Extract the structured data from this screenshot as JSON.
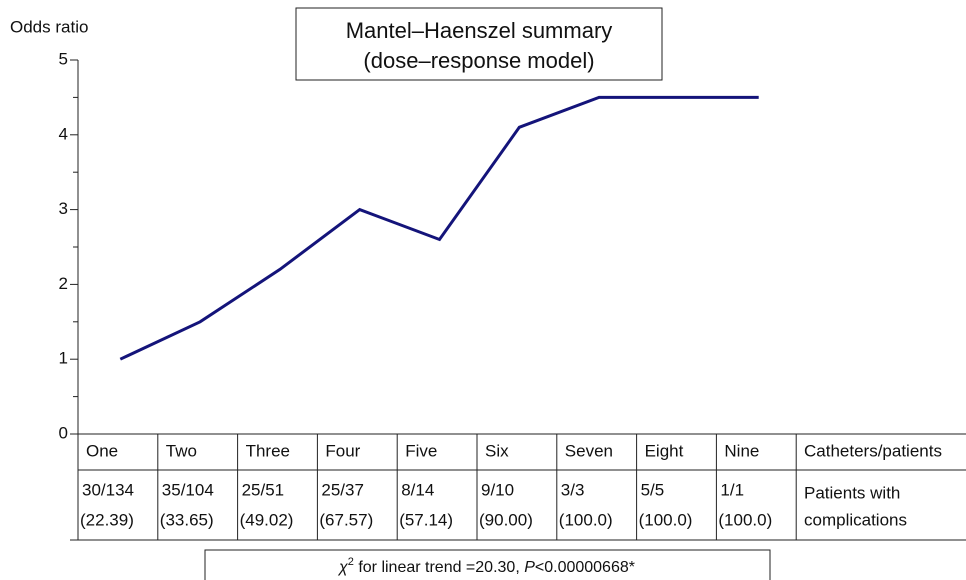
{
  "chart_data": {
    "type": "line",
    "title": [
      "Mantel–Haenszel summary",
      "(dose–response model)"
    ],
    "y_label": "Odds ratio",
    "categories": [
      "One",
      "Two",
      "Three",
      "Four",
      "Five",
      "Six",
      "Seven",
      "Eight",
      "Nine"
    ],
    "series": [
      {
        "name": "Odds ratio",
        "color": "#14147a",
        "values": [
          1.0,
          1.5,
          2.2,
          3.0,
          2.6,
          4.1,
          4.5,
          4.5,
          4.5
        ]
      }
    ],
    "ylim": [
      0,
      5
    ],
    "yticks": [
      0,
      1,
      2,
      3,
      4,
      5
    ],
    "table": {
      "header_label": "Catheters/patients",
      "row_label": [
        "Patients with",
        "complications"
      ],
      "counts": [
        "30/134",
        "35/104",
        "25/51",
        "25/37",
        "8/14",
        "9/10",
        "3/3",
        "5/5",
        "1/1"
      ],
      "percents": [
        "(22.39)",
        "(33.65)",
        "(49.02)",
        "(67.57)",
        "(57.14)",
        "(90.00)",
        "(100.0)",
        "(100.0)",
        "(100.0)"
      ]
    },
    "footnote": [
      "χ",
      "2",
      " for linear trend =20.30, ",
      "P",
      "<0.00000668*"
    ]
  }
}
